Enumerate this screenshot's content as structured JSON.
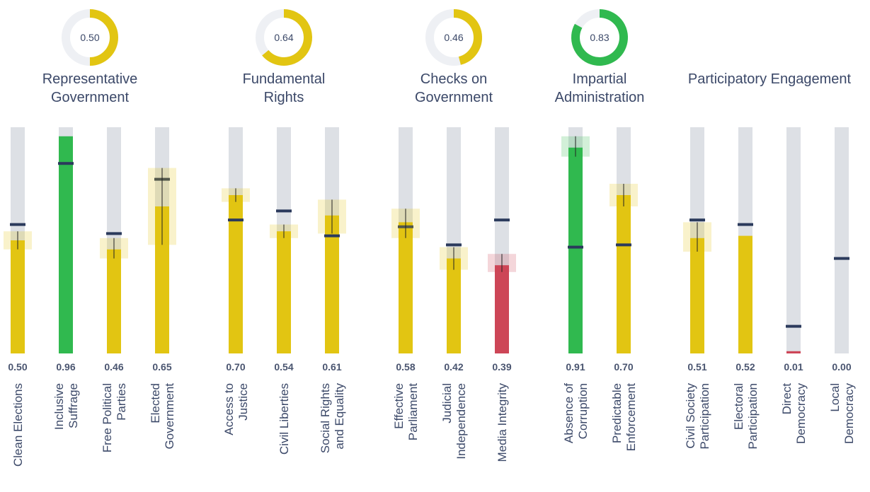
{
  "chart_data": {
    "type": "bar",
    "ylim": [
      0,
      1
    ],
    "track_color": "#dde0e5",
    "reference_color": "#2b3a5c",
    "groups": [
      {
        "title": [
          "Representative",
          "Government"
        ],
        "score": 0.5,
        "score_label": "0.50",
        "score_color": "#e2c512",
        "bars": [
          {
            "label": [
              "Clean Elections"
            ],
            "value": 0.5,
            "value_label": "0.50",
            "color": "#e2c512",
            "reference": 0.57,
            "ci": [
              0.46,
              0.54
            ]
          },
          {
            "label": [
              "Inclusive",
              "Suffrage"
            ],
            "value": 0.96,
            "value_label": "0.96",
            "color": "#30b94f",
            "reference": 0.84,
            "ci": null
          },
          {
            "label": [
              "Free Political",
              "Parties"
            ],
            "value": 0.46,
            "value_label": "0.46",
            "color": "#e2c512",
            "reference": 0.53,
            "ci": [
              0.42,
              0.51
            ]
          },
          {
            "label": [
              "Elected",
              "Government"
            ],
            "value": 0.65,
            "value_label": "0.65",
            "color": "#e2c512",
            "reference": 0.77,
            "ci": [
              0.48,
              0.82
            ]
          }
        ]
      },
      {
        "title": [
          "Fundamental",
          "Rights"
        ],
        "score": 0.64,
        "score_label": "0.64",
        "score_color": "#e2c512",
        "bars": [
          {
            "label": [
              "Access to",
              "Justice"
            ],
            "value": 0.7,
            "value_label": "0.70",
            "color": "#e2c512",
            "reference": 0.59,
            "ci": [
              0.67,
              0.73
            ]
          },
          {
            "label": [
              "Civil Liberties"
            ],
            "value": 0.54,
            "value_label": "0.54",
            "color": "#e2c512",
            "reference": 0.63,
            "ci": [
              0.51,
              0.57
            ]
          },
          {
            "label": [
              "Social Rights",
              "and Equality"
            ],
            "value": 0.61,
            "value_label": "0.61",
            "color": "#e2c512",
            "reference": 0.52,
            "ci": [
              0.53,
              0.68
            ]
          }
        ]
      },
      {
        "title": [
          "Checks on",
          "Government"
        ],
        "score": 0.46,
        "score_label": "0.46",
        "score_color": "#e2c512",
        "bars": [
          {
            "label": [
              "Effective",
              "Parliament"
            ],
            "value": 0.58,
            "value_label": "0.58",
            "color": "#e2c512",
            "reference": 0.56,
            "ci": [
              0.51,
              0.64
            ]
          },
          {
            "label": [
              "Judicial",
              "Independence"
            ],
            "value": 0.42,
            "value_label": "0.42",
            "color": "#e2c512",
            "reference": 0.48,
            "ci": [
              0.37,
              0.47
            ]
          },
          {
            "label": [
              "Media Integrity"
            ],
            "value": 0.39,
            "value_label": "0.39",
            "color": "#cd4657",
            "reference": 0.59,
            "ci": [
              0.36,
              0.44
            ]
          }
        ]
      },
      {
        "title": [
          "Impartial",
          "Administration"
        ],
        "score": 0.83,
        "score_label": "0.83",
        "score_color": "#30b94f",
        "bars": [
          {
            "label": [
              "Absence of",
              "Corruption"
            ],
            "value": 0.91,
            "value_label": "0.91",
            "color": "#30b94f",
            "reference": 0.47,
            "ci": [
              0.87,
              0.96
            ]
          },
          {
            "label": [
              "Predictable",
              "Enforcement"
            ],
            "value": 0.7,
            "value_label": "0.70",
            "color": "#e2c512",
            "reference": 0.48,
            "ci": [
              0.65,
              0.75
            ]
          }
        ]
      },
      {
        "title": [
          "Participatory Engagement"
        ],
        "score": null,
        "score_label": null,
        "score_color": null,
        "bars": [
          {
            "label": [
              "Civil Society",
              "Participation"
            ],
            "value": 0.51,
            "value_label": "0.51",
            "color": "#e2c512",
            "reference": 0.59,
            "ci": [
              0.45,
              0.58
            ]
          },
          {
            "label": [
              "Electoral",
              "Participation"
            ],
            "value": 0.52,
            "value_label": "0.52",
            "color": "#e2c512",
            "reference": 0.57,
            "ci": null
          },
          {
            "label": [
              "Direct",
              "Democracy"
            ],
            "value": 0.01,
            "value_label": "0.01",
            "color": "#cd4657",
            "reference": 0.12,
            "ci": null
          },
          {
            "label": [
              "Local",
              "Democracy"
            ],
            "value": 0,
            "value_label": "0.00",
            "color": "#e2c512",
            "reference": 0.42,
            "ci": null
          }
        ]
      }
    ]
  }
}
